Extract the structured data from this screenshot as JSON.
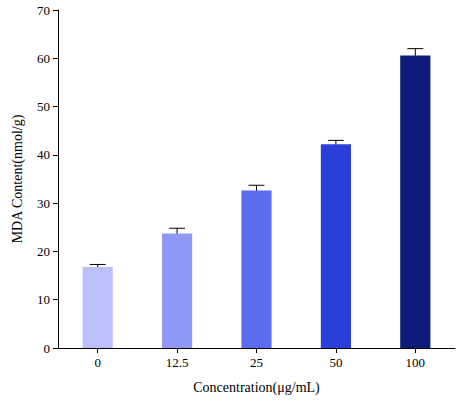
{
  "chart_data": {
    "type": "bar",
    "xlabel": "Concentration(μg/mL)",
    "ylabel": "MDA Content(nmol/g)",
    "categories": [
      "0",
      "12.5",
      "25",
      "50",
      "100"
    ],
    "values": [
      16.8,
      23.7,
      32.6,
      42.2,
      60.6
    ],
    "errors": [
      0.5,
      1.1,
      1.1,
      0.8,
      1.4
    ],
    "colors": [
      "#bcc0f8",
      "#8e98f4",
      "#5c6cf1",
      "#2a3fd8",
      "#0e1b7a"
    ],
    "ylim": [
      0,
      70
    ],
    "yticks": [
      0,
      10,
      20,
      30,
      40,
      50,
      60,
      70
    ],
    "grid": false
  }
}
